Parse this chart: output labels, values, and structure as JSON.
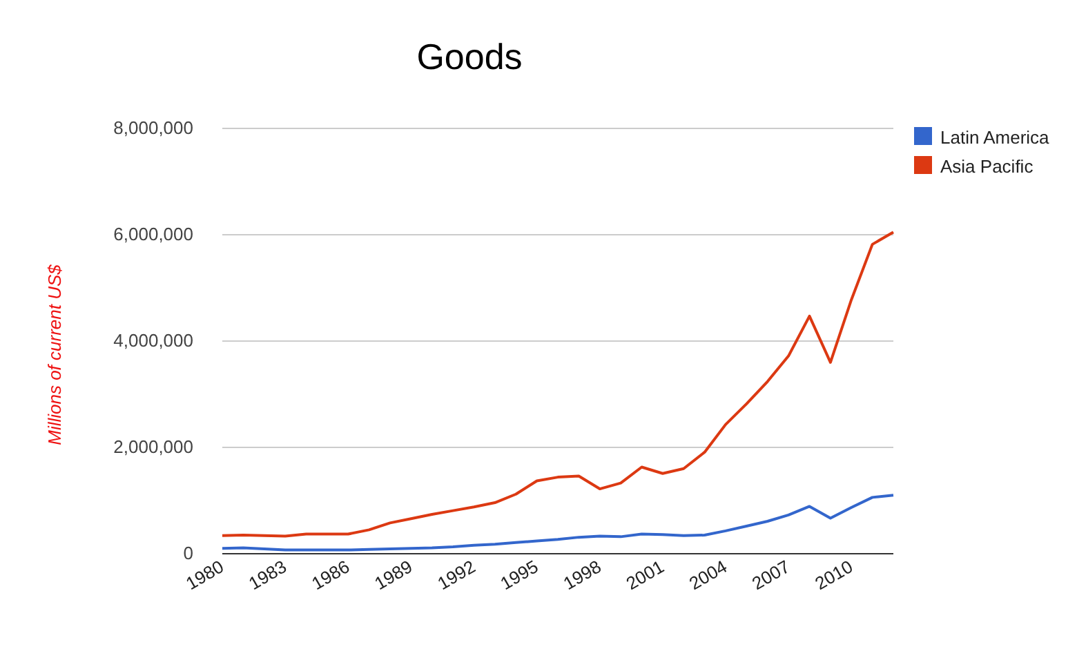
{
  "chart_data": {
    "type": "line",
    "title": "Goods",
    "ylabel": "Millions of current US$",
    "x": [
      1980,
      1981,
      1982,
      1983,
      1984,
      1985,
      1986,
      1987,
      1988,
      1989,
      1990,
      1991,
      1992,
      1993,
      1994,
      1995,
      1996,
      1997,
      1998,
      1999,
      2000,
      2001,
      2002,
      2003,
      2004,
      2005,
      2006,
      2007,
      2008,
      2009,
      2010,
      2011,
      2012
    ],
    "series": [
      {
        "name": "Latin America",
        "color": "#3366cc",
        "values": [
          100000,
          110000,
          90000,
          70000,
          70000,
          70000,
          70000,
          80000,
          90000,
          100000,
          110000,
          130000,
          160000,
          180000,
          210000,
          240000,
          270000,
          310000,
          330000,
          320000,
          370000,
          360000,
          340000,
          350000,
          430000,
          520000,
          610000,
          730000,
          890000,
          670000,
          870000,
          1060000,
          1100000
        ]
      },
      {
        "name": "Asia Pacific",
        "color": "#dc3912",
        "values": [
          340000,
          350000,
          340000,
          330000,
          370000,
          370000,
          370000,
          450000,
          580000,
          660000,
          740000,
          810000,
          880000,
          960000,
          1120000,
          1370000,
          1440000,
          1460000,
          1220000,
          1330000,
          1630000,
          1510000,
          1600000,
          1910000,
          2430000,
          2820000,
          3240000,
          3720000,
          4470000,
          3600000,
          4780000,
          5820000,
          6050000
        ]
      }
    ],
    "xlim": [
      1980,
      2012
    ],
    "xticks": [
      1980,
      1983,
      1986,
      1989,
      1992,
      1995,
      1998,
      2001,
      2004,
      2007,
      2010
    ],
    "ylim": [
      0,
      8000000
    ],
    "yticks": [
      {
        "value": 0,
        "label": "0"
      },
      {
        "value": 2000000,
        "label": "2,000,000"
      },
      {
        "value": 4000000,
        "label": "4,000,000"
      },
      {
        "value": 6000000,
        "label": "6,000,000"
      },
      {
        "value": 8000000,
        "label": "8,000,000"
      }
    ],
    "grid": "y",
    "legend": "right",
    "line_style": "solid",
    "marker": "none"
  }
}
